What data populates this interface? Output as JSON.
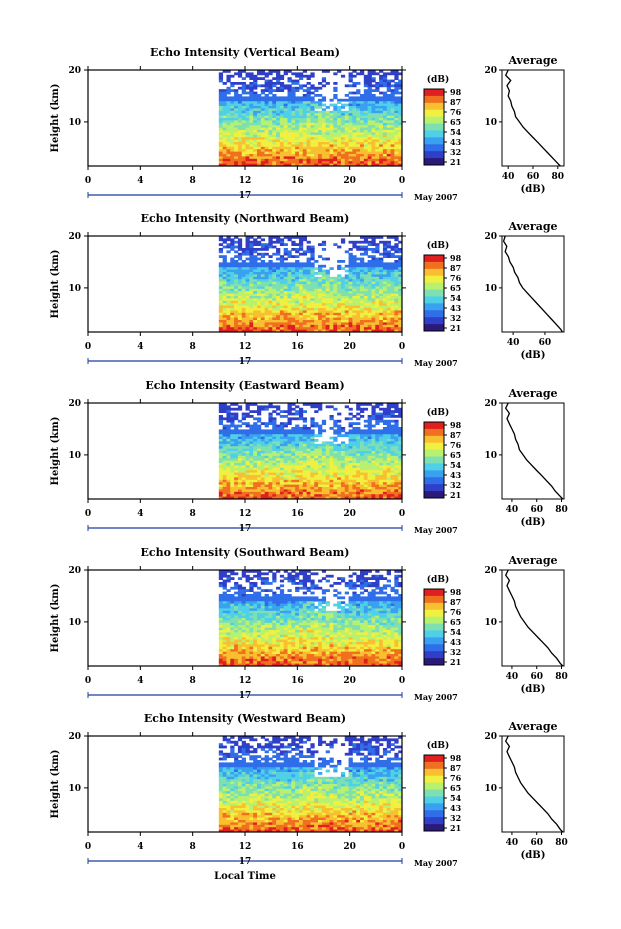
{
  "figure": {
    "xlabel": "Local Time",
    "colors": {
      "line": "#000000",
      "timeline": "#1a3fa0",
      "colorscale": [
        "#2a1b7a",
        "#2f3fc8",
        "#2f6ee8",
        "#3aa0f0",
        "#4fd0e8",
        "#7ee0b0",
        "#b8f070",
        "#f0f040",
        "#f8c030",
        "#f07020",
        "#e02020"
      ]
    }
  },
  "chart_data": [
    {
      "type": "heatmap",
      "title": "Echo Intensity (Vertical Beam)",
      "ylabel": "Height (km)",
      "ylim": [
        1.5,
        20
      ],
      "yticks": [
        20,
        10
      ],
      "x_ticks": [
        "0",
        "4",
        "8",
        "12",
        "16",
        "20",
        "0"
      ],
      "xlim": [
        0,
        24
      ],
      "data_start_hour": 10,
      "day_label": "17",
      "month_label": "May 2007",
      "colorbar": {
        "label": "(dB)",
        "ticks": [
          "98",
          "87",
          "76",
          "65",
          "54",
          "43",
          "32",
          "21"
        ]
      },
      "average": {
        "title": "Average",
        "xlabel": "(dB)",
        "x_ticks": [
          "40",
          "60",
          "80"
        ],
        "xlim": [
          35,
          85
        ],
        "profile": [
          [
            20,
            40
          ],
          [
            19,
            38
          ],
          [
            18,
            42
          ],
          [
            17,
            39
          ],
          [
            16,
            41
          ],
          [
            15,
            40
          ],
          [
            14,
            42
          ],
          [
            13,
            43
          ],
          [
            12,
            45
          ],
          [
            11,
            46
          ],
          [
            10,
            49
          ],
          [
            9,
            52
          ],
          [
            8,
            56
          ],
          [
            7,
            60
          ],
          [
            6,
            64
          ],
          [
            5,
            68
          ],
          [
            4,
            72
          ],
          [
            3,
            76
          ],
          [
            2,
            80
          ],
          [
            1.5,
            82
          ]
        ]
      }
    },
    {
      "type": "heatmap",
      "title": "Echo Intensity (Northward Beam)",
      "ylabel": "Height (km)",
      "ylim": [
        1.5,
        20
      ],
      "yticks": [
        20,
        10
      ],
      "x_ticks": [
        "0",
        "4",
        "8",
        "12",
        "16",
        "20",
        "0"
      ],
      "xlim": [
        0,
        24
      ],
      "data_start_hour": 10,
      "day_label": "17",
      "month_label": "May 2007",
      "colorbar": {
        "label": "(dB)",
        "ticks": [
          "98",
          "87",
          "76",
          "65",
          "54",
          "43",
          "32",
          "21"
        ]
      },
      "average": {
        "title": "Average",
        "xlabel": "(dB)",
        "x_ticks": [
          "40",
          "60"
        ],
        "xlim": [
          33,
          72
        ],
        "profile": [
          [
            20,
            35
          ],
          [
            19,
            34
          ],
          [
            18,
            36
          ],
          [
            17,
            35
          ],
          [
            16,
            37
          ],
          [
            15,
            38
          ],
          [
            14,
            40
          ],
          [
            13,
            41
          ],
          [
            12,
            43
          ],
          [
            11,
            44
          ],
          [
            10,
            46
          ],
          [
            9,
            49
          ],
          [
            8,
            52
          ],
          [
            7,
            55
          ],
          [
            6,
            58
          ],
          [
            5,
            61
          ],
          [
            4,
            64
          ],
          [
            3,
            67
          ],
          [
            2,
            70
          ],
          [
            1.5,
            71
          ]
        ]
      }
    },
    {
      "type": "heatmap",
      "title": "Echo Intensity (Eastward Beam)",
      "ylabel": "Height (km)",
      "ylim": [
        1.5,
        20
      ],
      "yticks": [
        20,
        10
      ],
      "x_ticks": [
        "0",
        "4",
        "8",
        "12",
        "16",
        "20",
        "0"
      ],
      "xlim": [
        0,
        24
      ],
      "data_start_hour": 10,
      "day_label": "17",
      "month_label": "May 2007",
      "colorbar": {
        "label": "(dB)",
        "ticks": [
          "98",
          "87",
          "76",
          "65",
          "54",
          "43",
          "32",
          "21"
        ]
      },
      "average": {
        "title": "Average",
        "xlabel": "(dB)",
        "x_ticks": [
          "40",
          "60",
          "80"
        ],
        "xlim": [
          32,
          82
        ],
        "profile": [
          [
            20,
            37
          ],
          [
            19,
            35
          ],
          [
            18,
            38
          ],
          [
            17,
            36
          ],
          [
            16,
            38
          ],
          [
            15,
            40
          ],
          [
            14,
            42
          ],
          [
            13,
            43
          ],
          [
            12,
            45
          ],
          [
            11,
            46
          ],
          [
            10,
            49
          ],
          [
            9,
            52
          ],
          [
            8,
            56
          ],
          [
            7,
            60
          ],
          [
            6,
            64
          ],
          [
            5,
            68
          ],
          [
            4,
            72
          ],
          [
            3,
            75
          ],
          [
            2,
            79
          ],
          [
            1.5,
            81
          ]
        ]
      }
    },
    {
      "type": "heatmap",
      "title": "Echo Intensity (Southward Beam)",
      "ylabel": "Height (km)",
      "ylim": [
        1.5,
        20
      ],
      "yticks": [
        20,
        10
      ],
      "x_ticks": [
        "0",
        "4",
        "8",
        "12",
        "16",
        "20",
        "0"
      ],
      "xlim": [
        0,
        24
      ],
      "data_start_hour": 10,
      "day_label": "17",
      "month_label": "May 2007",
      "colorbar": {
        "label": "(dB)",
        "ticks": [
          "98",
          "87",
          "76",
          "65",
          "54",
          "43",
          "32",
          "21"
        ]
      },
      "average": {
        "title": "Average",
        "xlabel": "(dB)",
        "x_ticks": [
          "40",
          "60",
          "80"
        ],
        "xlim": [
          32,
          82
        ],
        "profile": [
          [
            20,
            37
          ],
          [
            19,
            35
          ],
          [
            18,
            38
          ],
          [
            17,
            36
          ],
          [
            16,
            38
          ],
          [
            15,
            40
          ],
          [
            14,
            42
          ],
          [
            13,
            43
          ],
          [
            12,
            45
          ],
          [
            11,
            47
          ],
          [
            10,
            50
          ],
          [
            9,
            53
          ],
          [
            8,
            57
          ],
          [
            7,
            61
          ],
          [
            6,
            65
          ],
          [
            5,
            69
          ],
          [
            4,
            72
          ],
          [
            3,
            76
          ],
          [
            2,
            79
          ],
          [
            1.5,
            81
          ]
        ]
      }
    },
    {
      "type": "heatmap",
      "title": "Echo Intensity (Westward Beam)",
      "ylabel": "Height (km)",
      "ylim": [
        1.5,
        20
      ],
      "yticks": [
        20,
        10
      ],
      "x_ticks": [
        "0",
        "4",
        "8",
        "12",
        "16",
        "20",
        "0"
      ],
      "xlim": [
        0,
        24
      ],
      "data_start_hour": 10,
      "day_label": "17",
      "month_label": "May 2007",
      "colorbar": {
        "label": "(dB)",
        "ticks": [
          "98",
          "87",
          "76",
          "65",
          "54",
          "43",
          "32",
          "21"
        ]
      },
      "average": {
        "title": "Average",
        "xlabel": "(dB)",
        "x_ticks": [
          "40",
          "60",
          "80"
        ],
        "xlim": [
          32,
          82
        ],
        "profile": [
          [
            20,
            37
          ],
          [
            19,
            35
          ],
          [
            18,
            38
          ],
          [
            17,
            36
          ],
          [
            16,
            38
          ],
          [
            15,
            40
          ],
          [
            14,
            42
          ],
          [
            13,
            43
          ],
          [
            12,
            45
          ],
          [
            11,
            47
          ],
          [
            10,
            50
          ],
          [
            9,
            53
          ],
          [
            8,
            57
          ],
          [
            7,
            61
          ],
          [
            6,
            65
          ],
          [
            5,
            69
          ],
          [
            4,
            72
          ],
          [
            3,
            76
          ],
          [
            2,
            79
          ],
          [
            1.5,
            81
          ]
        ]
      }
    }
  ]
}
